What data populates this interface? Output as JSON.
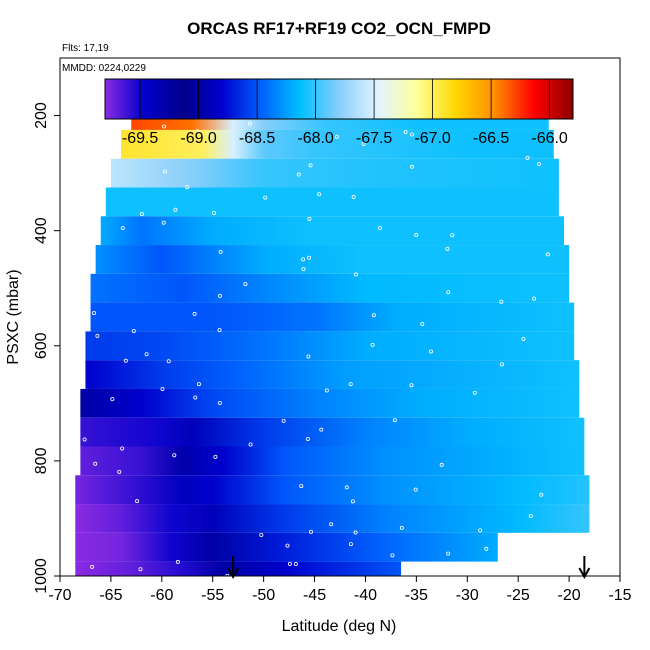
{
  "chart_data": {
    "type": "heatmap",
    "title": "ORCAS RF17+RF19 CO2_OCN_FMPD",
    "notes": [
      "Flts: 17,19",
      "MMDD: 0224,0229"
    ],
    "xlabel": "Latitude (deg N)",
    "ylabel": "PSXC (mbar)",
    "xlim": [
      -70,
      -15
    ],
    "ylim": [
      1000,
      100
    ],
    "x_ticks": [
      -70,
      -65,
      -60,
      -55,
      -50,
      -45,
      -40,
      -35,
      -30,
      -25,
      -20,
      -15
    ],
    "y_ticks": [
      200,
      400,
      600,
      800,
      1000
    ],
    "colorbar": {
      "range": [
        -69.8,
        -65.8
      ],
      "ticks": [
        -69.5,
        -69.0,
        -68.5,
        -68.0,
        -67.5,
        -67.0,
        -66.5,
        -66.0
      ],
      "tick_labels": [
        "-69.5",
        "-69.0",
        "-68.5",
        "-68.0",
        "-67.5",
        "-67.0",
        "-66.5",
        "-66.0"
      ],
      "colors": [
        "#8a2be2",
        "#0000cd",
        "#00008b",
        "#0000cd",
        "#0060ff",
        "#00bfff",
        "#87cefa",
        "#e0f4ff",
        "#ffff99",
        "#ffd700",
        "#ff8c00",
        "#ff0000",
        "#8b0000"
      ]
    },
    "arrows_latitude": [
      -53,
      -18.5
    ],
    "pressure_bands": [
      {
        "p": [
          175,
          225
        ],
        "lat": [
          -63,
          -22
        ],
        "values": [
          [
            -63,
            -66.3
          ],
          [
            -57,
            -66.4
          ],
          [
            -53,
            -67.5
          ],
          [
            -50,
            -67.8
          ],
          [
            -44,
            -68.0
          ],
          [
            -35,
            -68.1
          ],
          [
            -22,
            -68.1
          ]
        ]
      },
      {
        "p": [
          225,
          275
        ],
        "lat": [
          -64,
          -21.5
        ],
        "values": [
          [
            -64,
            -66.9
          ],
          [
            -56,
            -67.0
          ],
          [
            -53,
            -67.5
          ],
          [
            -50,
            -67.9
          ],
          [
            -45,
            -68.0
          ],
          [
            -30,
            -68.1
          ],
          [
            -21.5,
            -68.1
          ]
        ]
      },
      {
        "p": [
          275,
          325
        ],
        "lat": [
          -65,
          -21
        ],
        "values": [
          [
            -65,
            -67.6
          ],
          [
            -57,
            -67.8
          ],
          [
            -50,
            -68.0
          ],
          [
            -40,
            -68.05
          ],
          [
            -21,
            -68.1
          ]
        ]
      },
      {
        "p": [
          325,
          375
        ],
        "lat": [
          -65.5,
          -21
        ],
        "values": [
          [
            -65.5,
            -68.1
          ],
          [
            -50,
            -68.1
          ],
          [
            -21,
            -68.1
          ]
        ]
      },
      {
        "p": [
          375,
          425
        ],
        "lat": [
          -66,
          -20.5
        ],
        "values": [
          [
            -66,
            -68.2
          ],
          [
            -62,
            -68.4
          ],
          [
            -55,
            -68.2
          ],
          [
            -45,
            -68.1
          ],
          [
            -20.5,
            -68.1
          ]
        ]
      },
      {
        "p": [
          425,
          475
        ],
        "lat": [
          -66.5,
          -20
        ],
        "values": [
          [
            -66.5,
            -68.3
          ],
          [
            -60,
            -68.5
          ],
          [
            -50,
            -68.2
          ],
          [
            -40,
            -68.1
          ],
          [
            -20,
            -68.1
          ]
        ]
      },
      {
        "p": [
          475,
          525
        ],
        "lat": [
          -67,
          -20
        ],
        "values": [
          [
            -67,
            -68.4
          ],
          [
            -58,
            -68.5
          ],
          [
            -48,
            -68.3
          ],
          [
            -40,
            -68.15
          ],
          [
            -20,
            -68.1
          ]
        ]
      },
      {
        "p": [
          525,
          575
        ],
        "lat": [
          -67,
          -19.5
        ],
        "values": [
          [
            -67,
            -68.5
          ],
          [
            -55,
            -68.5
          ],
          [
            -45,
            -68.4
          ],
          [
            -37,
            -68.2
          ],
          [
            -19.5,
            -68.1
          ]
        ]
      },
      {
        "p": [
          575,
          625
        ],
        "lat": [
          -67.5,
          -19.5
        ],
        "values": [
          [
            -67.5,
            -68.6
          ],
          [
            -60,
            -68.55
          ],
          [
            -50,
            -68.4
          ],
          [
            -40,
            -68.2
          ],
          [
            -19.5,
            -68.1
          ]
        ]
      },
      {
        "p": [
          625,
          675
        ],
        "lat": [
          -67.5,
          -19
        ],
        "values": [
          [
            -67.5,
            -68.8
          ],
          [
            -60,
            -68.6
          ],
          [
            -52,
            -68.45
          ],
          [
            -42,
            -68.25
          ],
          [
            -19,
            -68.1
          ]
        ]
      },
      {
        "p": [
          675,
          725
        ],
        "lat": [
          -68,
          -19
        ],
        "values": [
          [
            -68,
            -69.0
          ],
          [
            -62,
            -68.8
          ],
          [
            -55,
            -68.55
          ],
          [
            -45,
            -68.35
          ],
          [
            -35,
            -68.2
          ],
          [
            -19,
            -68.1
          ]
        ]
      },
      {
        "p": [
          725,
          775
        ],
        "lat": [
          -68,
          -18.5
        ],
        "values": [
          [
            -68,
            -69.6
          ],
          [
            -60,
            -69.5
          ],
          [
            -57,
            -68.9
          ],
          [
            -50,
            -68.6
          ],
          [
            -40,
            -68.35
          ],
          [
            -30,
            -68.2
          ],
          [
            -18.5,
            -68.1
          ]
        ]
      },
      {
        "p": [
          775,
          825
        ],
        "lat": [
          -68,
          -18.5
        ],
        "values": [
          [
            -68,
            -69.7
          ],
          [
            -62,
            -69.6
          ],
          [
            -58,
            -69.3
          ],
          [
            -54,
            -68.8
          ],
          [
            -48,
            -68.5
          ],
          [
            -38,
            -68.3
          ],
          [
            -28,
            -68.2
          ],
          [
            -18.5,
            -68.1
          ]
        ]
      },
      {
        "p": [
          825,
          875
        ],
        "lat": [
          -68.5,
          -18
        ],
        "values": [
          [
            -68.5,
            -69.75
          ],
          [
            -63,
            -69.6
          ],
          [
            -58,
            -69.4
          ],
          [
            -55,
            -68.8
          ],
          [
            -48,
            -68.5
          ],
          [
            -38,
            -68.3
          ],
          [
            -25,
            -68.15
          ],
          [
            -18,
            -68.05
          ]
        ]
      },
      {
        "p": [
          875,
          925
        ],
        "lat": [
          -68.5,
          -18
        ],
        "values": [
          [
            -68.5,
            -69.8
          ],
          [
            -64,
            -69.7
          ],
          [
            -59,
            -69.5
          ],
          [
            -55,
            -68.9
          ],
          [
            -48,
            -68.6
          ],
          [
            -38,
            -68.35
          ],
          [
            -25,
            -68.15
          ],
          [
            -18,
            -68.0
          ]
        ]
      },
      {
        "p": [
          925,
          975
        ],
        "lat": [
          -68.5,
          -27
        ],
        "values": [
          [
            -68.5,
            -69.85
          ],
          [
            -64,
            -69.75
          ],
          [
            -59,
            -69.5
          ],
          [
            -55,
            -69.0
          ],
          [
            -48,
            -68.7
          ],
          [
            -38,
            -68.45
          ],
          [
            -27,
            -68.2
          ]
        ]
      },
      {
        "p": [
          975,
          1000
        ],
        "lat": [
          -68.5,
          -36.5
        ],
        "values": [
          [
            -68.5,
            -69.9
          ],
          [
            -63,
            -69.7
          ],
          [
            -58,
            -69.55
          ],
          [
            -54,
            -69.0
          ],
          [
            -48,
            -68.8
          ],
          [
            -40,
            -68.6
          ],
          [
            -36.5,
            -68.5
          ]
        ]
      }
    ],
    "flight_track_p": [
      175,
      195,
      210,
      230,
      260,
      300,
      340,
      380,
      420,
      460,
      500,
      540,
      580,
      620,
      660,
      700,
      740,
      780,
      820,
      860,
      900,
      940,
      985
    ]
  }
}
